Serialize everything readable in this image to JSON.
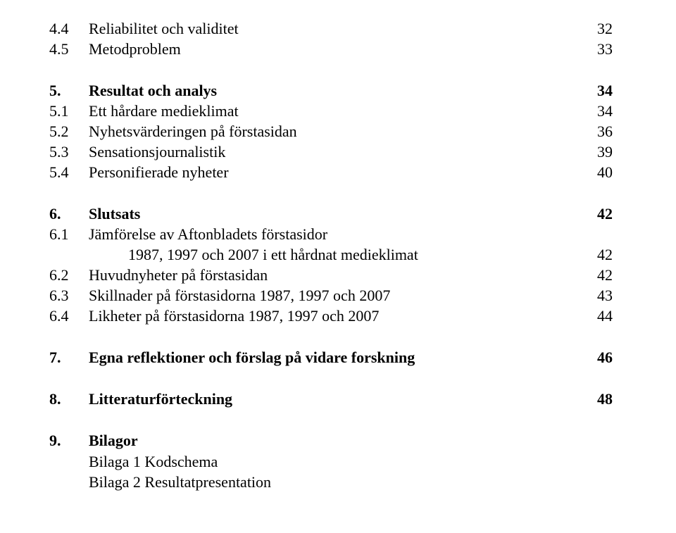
{
  "font": {
    "family": "Times New Roman",
    "size_pt": 17
  },
  "colors": {
    "text": "#000000",
    "background": "#ffffff"
  },
  "toc": {
    "groups": [
      {
        "rows": [
          {
            "num": "4.4",
            "label": "Reliabilitet och validitet",
            "page": "32",
            "bold": false
          },
          {
            "num": "4.5",
            "label": "Metodproblem",
            "page": "33",
            "bold": false
          }
        ]
      },
      {
        "rows": [
          {
            "num": "5.",
            "label": "Resultat och analys",
            "page": "34",
            "bold": true
          },
          {
            "num": "5.1",
            "label": "Ett hårdare medieklimat",
            "page": "34",
            "bold": false
          },
          {
            "num": "5.2",
            "label": "Nyhetsvärderingen på förstasidan",
            "page": "36",
            "bold": false
          },
          {
            "num": "5.3",
            "label": "Sensationsjournalistik",
            "page": "39",
            "bold": false
          },
          {
            "num": "5.4",
            "label": "Personifierade nyheter",
            "page": "40",
            "bold": false
          }
        ]
      },
      {
        "rows": [
          {
            "num": "6.",
            "label": "Slutsats",
            "page": "42",
            "bold": true
          },
          {
            "num": "6.1",
            "label": "Jämförelse av Aftonbladets förstasidor",
            "page": "",
            "bold": false
          },
          {
            "num": "",
            "label": "1987, 1997 och 2007 i ett hårdnat medieklimat",
            "page": "42",
            "bold": false,
            "sub": true
          },
          {
            "num": "6.2",
            "label": "Huvudnyheter på förstasidan",
            "page": "42",
            "bold": false
          },
          {
            "num": "6.3",
            "label": "Skillnader på förstasidorna 1987, 1997 och 2007",
            "page": "43",
            "bold": false
          },
          {
            "num": "6.4",
            "label": "Likheter på förstasidorna 1987, 1997 och 2007",
            "page": "44",
            "bold": false
          }
        ]
      },
      {
        "rows": [
          {
            "num": "7.",
            "label": "Egna reflektioner och förslag på vidare forskning",
            "page": "46",
            "bold": true
          }
        ]
      },
      {
        "rows": [
          {
            "num": "8.",
            "label": "Litteraturförteckning",
            "page": "48",
            "bold": true
          }
        ]
      },
      {
        "rows": [
          {
            "num": "9.",
            "label": "Bilagor",
            "page": "",
            "bold": true
          },
          {
            "num": "",
            "label": "Bilaga 1 Kodschema",
            "page": "",
            "bold": false,
            "sub": true
          },
          {
            "num": "",
            "label": "Bilaga 2 Resultatpresentation",
            "page": "",
            "bold": false,
            "sub": true
          }
        ]
      }
    ]
  }
}
